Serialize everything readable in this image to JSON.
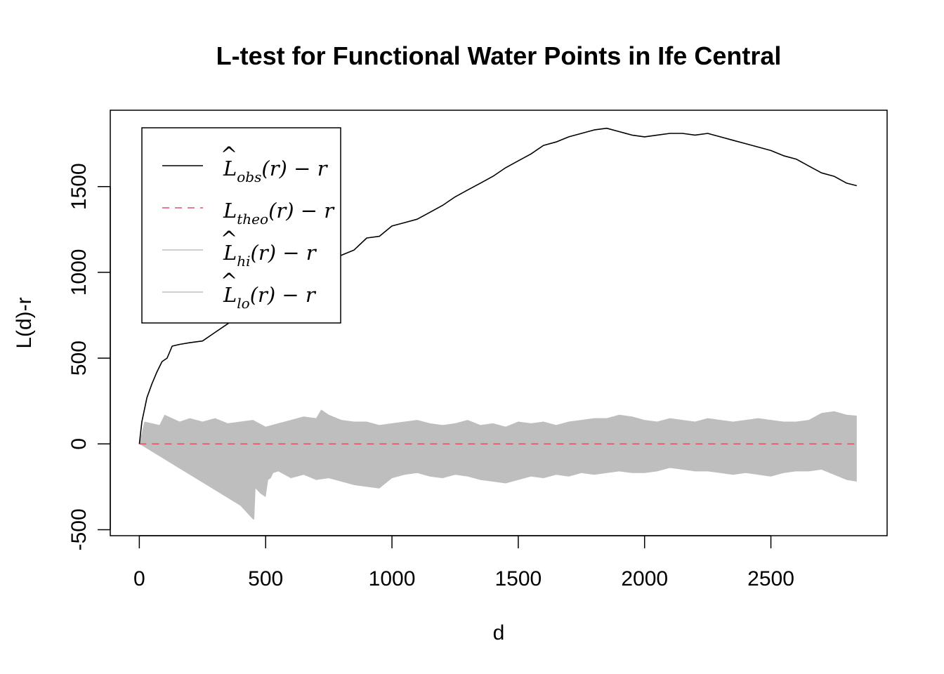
{
  "chart_data": {
    "type": "line",
    "title": "L-test for Functional Water Points in Ife Central",
    "xlabel": "d",
    "ylabel": "L(d)-r",
    "xlim": [
      -115,
      2960
    ],
    "ylim": [
      -535,
      1945
    ],
    "x_ticks": [
      0,
      500,
      1000,
      1500,
      2000,
      2500
    ],
    "x_tick_labels": [
      "0",
      "500",
      "1000",
      "1500",
      "2000",
      "2500"
    ],
    "y_ticks": [
      -500,
      0,
      500,
      1000,
      1500
    ],
    "y_tick_labels": [
      "-500",
      "0",
      "500",
      "1000",
      "1500"
    ],
    "legend": {
      "position": "top-left",
      "entries": [
        {
          "main": "L",
          "hat": "^",
          "sub": "obs",
          "suffix": "(r) − r",
          "style": "solid",
          "color": "#000000"
        },
        {
          "main": "L",
          "hat": "",
          "sub": "theo",
          "suffix": "(r) − r",
          "style": "dashed",
          "color": "#DF536B"
        },
        {
          "main": "L",
          "hat": "^",
          "sub": "hi",
          "suffix": "(r) − r",
          "style": "solid",
          "color": "#BEBEBE"
        },
        {
          "main": "L",
          "hat": "^",
          "sub": "lo",
          "suffix": "(r) − r",
          "style": "solid",
          "color": "#BEBEBE"
        }
      ]
    },
    "colors": {
      "observed": "#000000",
      "theoretical": "#DF536B",
      "envelope": "#BEBEBE"
    },
    "series": [
      {
        "name": "obs",
        "style": "solid",
        "x": [
          0,
          10,
          20,
          30,
          50,
          70,
          90,
          110,
          130,
          160,
          200,
          250,
          300,
          350,
          400,
          450,
          500,
          550,
          600,
          650,
          700,
          750,
          800,
          850,
          900,
          950,
          1000,
          1050,
          1100,
          1150,
          1200,
          1250,
          1300,
          1350,
          1400,
          1450,
          1500,
          1550,
          1600,
          1650,
          1700,
          1750,
          1800,
          1850,
          1900,
          1950,
          2000,
          2050,
          2100,
          2150,
          2200,
          2250,
          2300,
          2350,
          2400,
          2450,
          2500,
          2550,
          2600,
          2650,
          2700,
          2750,
          2800,
          2840
        ],
        "y": [
          0,
          130,
          200,
          270,
          350,
          420,
          480,
          500,
          570,
          580,
          590,
          600,
          650,
          700,
          760,
          830,
          860,
          900,
          920,
          940,
          980,
          1050,
          1100,
          1130,
          1200,
          1210,
          1270,
          1290,
          1310,
          1350,
          1390,
          1440,
          1480,
          1520,
          1560,
          1610,
          1650,
          1690,
          1740,
          1760,
          1790,
          1810,
          1830,
          1840,
          1820,
          1800,
          1790,
          1800,
          1810,
          1810,
          1800,
          1810,
          1790,
          1770,
          1750,
          1730,
          1710,
          1680,
          1660,
          1620,
          1580,
          1560,
          1520,
          1505
        ]
      },
      {
        "name": "theo",
        "style": "dashed",
        "x": [
          0,
          2840
        ],
        "y": [
          0,
          0
        ]
      },
      {
        "name": "hi",
        "style": "envelope-upper",
        "x": [
          0,
          20,
          50,
          80,
          100,
          130,
          160,
          200,
          250,
          300,
          350,
          400,
          450,
          500,
          550,
          600,
          650,
          700,
          720,
          750,
          800,
          850,
          900,
          950,
          1000,
          1050,
          1100,
          1150,
          1200,
          1250,
          1300,
          1350,
          1400,
          1450,
          1500,
          1550,
          1600,
          1650,
          1700,
          1750,
          1800,
          1850,
          1900,
          1950,
          2000,
          2050,
          2100,
          2150,
          2200,
          2250,
          2300,
          2350,
          2400,
          2450,
          2500,
          2550,
          2600,
          2650,
          2700,
          2750,
          2800,
          2840
        ],
        "y": [
          0,
          130,
          120,
          110,
          170,
          150,
          130,
          150,
          130,
          150,
          120,
          130,
          140,
          100,
          120,
          140,
          160,
          150,
          200,
          170,
          140,
          130,
          130,
          110,
          120,
          130,
          140,
          120,
          110,
          120,
          140,
          110,
          120,
          100,
          130,
          120,
          130,
          110,
          130,
          140,
          150,
          150,
          170,
          160,
          140,
          130,
          150,
          140,
          130,
          150,
          140,
          130,
          140,
          150,
          140,
          130,
          130,
          140,
          180,
          190,
          170,
          165
        ]
      },
      {
        "name": "lo",
        "style": "envelope-lower",
        "x": [
          0,
          100,
          200,
          300,
          400,
          450,
          455,
          460,
          480,
          500,
          510,
          520,
          530,
          550,
          600,
          650,
          700,
          750,
          800,
          850,
          900,
          950,
          1000,
          1050,
          1100,
          1150,
          1200,
          1250,
          1300,
          1350,
          1400,
          1450,
          1500,
          1550,
          1600,
          1650,
          1700,
          1750,
          1800,
          1850,
          1900,
          1950,
          2000,
          2050,
          2100,
          2150,
          2200,
          2250,
          2300,
          2350,
          2400,
          2450,
          2500,
          2550,
          2600,
          2650,
          2700,
          2750,
          2800,
          2840
        ],
        "y": [
          0,
          -90,
          -180,
          -270,
          -360,
          -440,
          -440,
          -260,
          -290,
          -310,
          -210,
          -200,
          -170,
          -160,
          -200,
          -180,
          -210,
          -200,
          -220,
          -240,
          -250,
          -260,
          -200,
          -180,
          -170,
          -190,
          -200,
          -180,
          -190,
          -210,
          -220,
          -230,
          -210,
          -190,
          -200,
          -180,
          -190,
          -170,
          -180,
          -170,
          -160,
          -170,
          -170,
          -160,
          -140,
          -150,
          -160,
          -160,
          -170,
          -180,
          -170,
          -180,
          -190,
          -170,
          -160,
          -160,
          -150,
          -180,
          -210,
          -220
        ]
      }
    ],
    "grid": false
  }
}
